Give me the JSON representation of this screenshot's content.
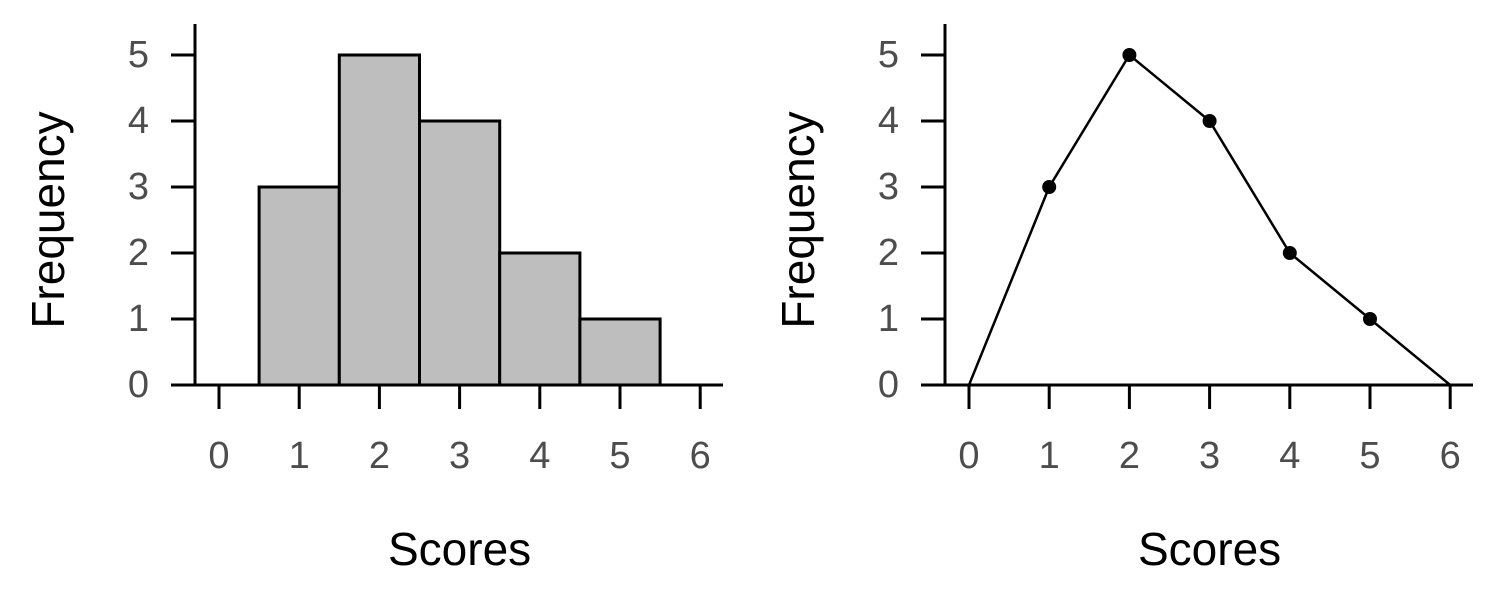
{
  "chart_data": [
    {
      "type": "bar",
      "subtype": "histogram",
      "x": [
        1,
        2,
        3,
        4,
        5
      ],
      "values": [
        3,
        5,
        4,
        2,
        1
      ],
      "bin_width": 1,
      "xlabel": "Scores",
      "ylabel": "Frequency",
      "xlim": [
        0,
        6
      ],
      "ylim": [
        0,
        5
      ],
      "xticks": [
        0,
        1,
        2,
        3,
        4,
        5,
        6
      ],
      "yticks": [
        0,
        1,
        2,
        3,
        4,
        5
      ],
      "grid": false,
      "colors": {
        "bar_fill": "#bebebe",
        "bar_edge": "#000000"
      }
    },
    {
      "type": "line",
      "subtype": "frequency-polygon",
      "x": [
        0,
        1,
        2,
        3,
        4,
        5,
        6
      ],
      "values": [
        0,
        3,
        5,
        4,
        2,
        1,
        0
      ],
      "xlabel": "Scores",
      "ylabel": "Frequency",
      "xlim": [
        0,
        6
      ],
      "ylim": [
        0,
        5
      ],
      "xticks": [
        0,
        1,
        2,
        3,
        4,
        5,
        6
      ],
      "yticks": [
        0,
        1,
        2,
        3,
        4,
        5
      ],
      "grid": false,
      "colors": {
        "line": "#000000",
        "point": "#000000"
      }
    }
  ]
}
